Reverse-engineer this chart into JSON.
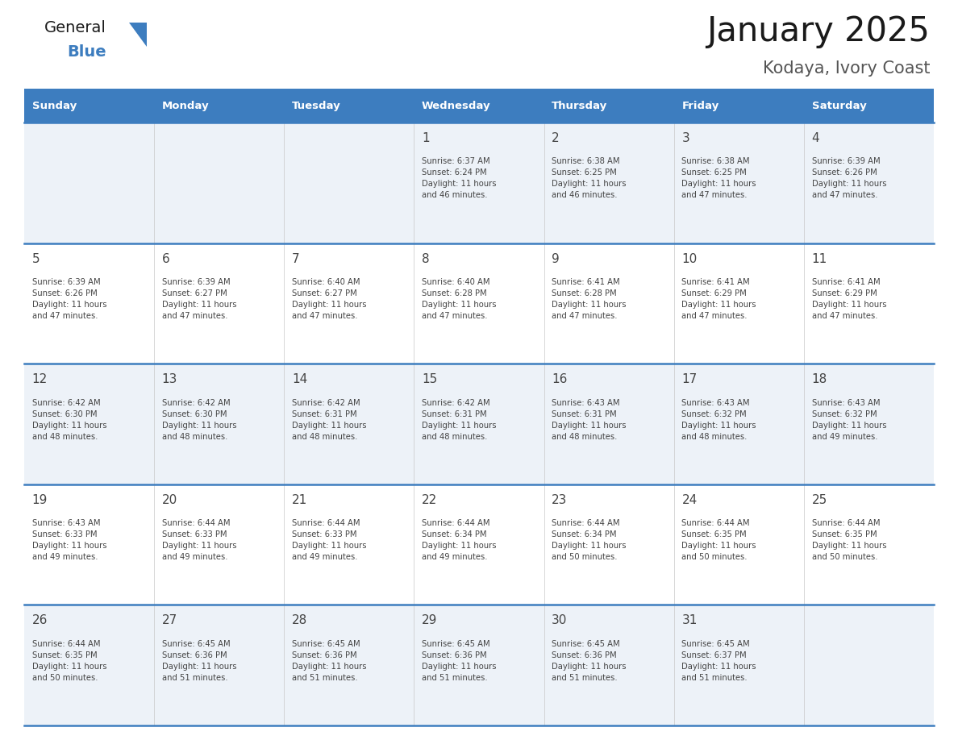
{
  "title": "January 2025",
  "subtitle": "Kodaya, Ivory Coast",
  "header_bg_color": "#3d7dbf",
  "header_text_color": "#ffffff",
  "cell_bg_even": "#edf2f8",
  "cell_bg_odd": "#ffffff",
  "row_line_color": "#3d7dbf",
  "text_color": "#444444",
  "days_of_week": [
    "Sunday",
    "Monday",
    "Tuesday",
    "Wednesday",
    "Thursday",
    "Friday",
    "Saturday"
  ],
  "calendar_data": [
    [
      {
        "day": null,
        "info": null
      },
      {
        "day": null,
        "info": null
      },
      {
        "day": null,
        "info": null
      },
      {
        "day": 1,
        "info": "Sunrise: 6:37 AM\nSunset: 6:24 PM\nDaylight: 11 hours\nand 46 minutes."
      },
      {
        "day": 2,
        "info": "Sunrise: 6:38 AM\nSunset: 6:25 PM\nDaylight: 11 hours\nand 46 minutes."
      },
      {
        "day": 3,
        "info": "Sunrise: 6:38 AM\nSunset: 6:25 PM\nDaylight: 11 hours\nand 47 minutes."
      },
      {
        "day": 4,
        "info": "Sunrise: 6:39 AM\nSunset: 6:26 PM\nDaylight: 11 hours\nand 47 minutes."
      }
    ],
    [
      {
        "day": 5,
        "info": "Sunrise: 6:39 AM\nSunset: 6:26 PM\nDaylight: 11 hours\nand 47 minutes."
      },
      {
        "day": 6,
        "info": "Sunrise: 6:39 AM\nSunset: 6:27 PM\nDaylight: 11 hours\nand 47 minutes."
      },
      {
        "day": 7,
        "info": "Sunrise: 6:40 AM\nSunset: 6:27 PM\nDaylight: 11 hours\nand 47 minutes."
      },
      {
        "day": 8,
        "info": "Sunrise: 6:40 AM\nSunset: 6:28 PM\nDaylight: 11 hours\nand 47 minutes."
      },
      {
        "day": 9,
        "info": "Sunrise: 6:41 AM\nSunset: 6:28 PM\nDaylight: 11 hours\nand 47 minutes."
      },
      {
        "day": 10,
        "info": "Sunrise: 6:41 AM\nSunset: 6:29 PM\nDaylight: 11 hours\nand 47 minutes."
      },
      {
        "day": 11,
        "info": "Sunrise: 6:41 AM\nSunset: 6:29 PM\nDaylight: 11 hours\nand 47 minutes."
      }
    ],
    [
      {
        "day": 12,
        "info": "Sunrise: 6:42 AM\nSunset: 6:30 PM\nDaylight: 11 hours\nand 48 minutes."
      },
      {
        "day": 13,
        "info": "Sunrise: 6:42 AM\nSunset: 6:30 PM\nDaylight: 11 hours\nand 48 minutes."
      },
      {
        "day": 14,
        "info": "Sunrise: 6:42 AM\nSunset: 6:31 PM\nDaylight: 11 hours\nand 48 minutes."
      },
      {
        "day": 15,
        "info": "Sunrise: 6:42 AM\nSunset: 6:31 PM\nDaylight: 11 hours\nand 48 minutes."
      },
      {
        "day": 16,
        "info": "Sunrise: 6:43 AM\nSunset: 6:31 PM\nDaylight: 11 hours\nand 48 minutes."
      },
      {
        "day": 17,
        "info": "Sunrise: 6:43 AM\nSunset: 6:32 PM\nDaylight: 11 hours\nand 48 minutes."
      },
      {
        "day": 18,
        "info": "Sunrise: 6:43 AM\nSunset: 6:32 PM\nDaylight: 11 hours\nand 49 minutes."
      }
    ],
    [
      {
        "day": 19,
        "info": "Sunrise: 6:43 AM\nSunset: 6:33 PM\nDaylight: 11 hours\nand 49 minutes."
      },
      {
        "day": 20,
        "info": "Sunrise: 6:44 AM\nSunset: 6:33 PM\nDaylight: 11 hours\nand 49 minutes."
      },
      {
        "day": 21,
        "info": "Sunrise: 6:44 AM\nSunset: 6:33 PM\nDaylight: 11 hours\nand 49 minutes."
      },
      {
        "day": 22,
        "info": "Sunrise: 6:44 AM\nSunset: 6:34 PM\nDaylight: 11 hours\nand 49 minutes."
      },
      {
        "day": 23,
        "info": "Sunrise: 6:44 AM\nSunset: 6:34 PM\nDaylight: 11 hours\nand 50 minutes."
      },
      {
        "day": 24,
        "info": "Sunrise: 6:44 AM\nSunset: 6:35 PM\nDaylight: 11 hours\nand 50 minutes."
      },
      {
        "day": 25,
        "info": "Sunrise: 6:44 AM\nSunset: 6:35 PM\nDaylight: 11 hours\nand 50 minutes."
      }
    ],
    [
      {
        "day": 26,
        "info": "Sunrise: 6:44 AM\nSunset: 6:35 PM\nDaylight: 11 hours\nand 50 minutes."
      },
      {
        "day": 27,
        "info": "Sunrise: 6:45 AM\nSunset: 6:36 PM\nDaylight: 11 hours\nand 51 minutes."
      },
      {
        "day": 28,
        "info": "Sunrise: 6:45 AM\nSunset: 6:36 PM\nDaylight: 11 hours\nand 51 minutes."
      },
      {
        "day": 29,
        "info": "Sunrise: 6:45 AM\nSunset: 6:36 PM\nDaylight: 11 hours\nand 51 minutes."
      },
      {
        "day": 30,
        "info": "Sunrise: 6:45 AM\nSunset: 6:36 PM\nDaylight: 11 hours\nand 51 minutes."
      },
      {
        "day": 31,
        "info": "Sunrise: 6:45 AM\nSunset: 6:37 PM\nDaylight: 11 hours\nand 51 minutes."
      },
      {
        "day": null,
        "info": null
      }
    ]
  ],
  "logo_color_general": "#1a1a1a",
  "logo_color_blue": "#3d7dbf",
  "logo_triangle_color": "#3d7dbf",
  "fig_width": 11.88,
  "fig_height": 9.18,
  "dpi": 100
}
